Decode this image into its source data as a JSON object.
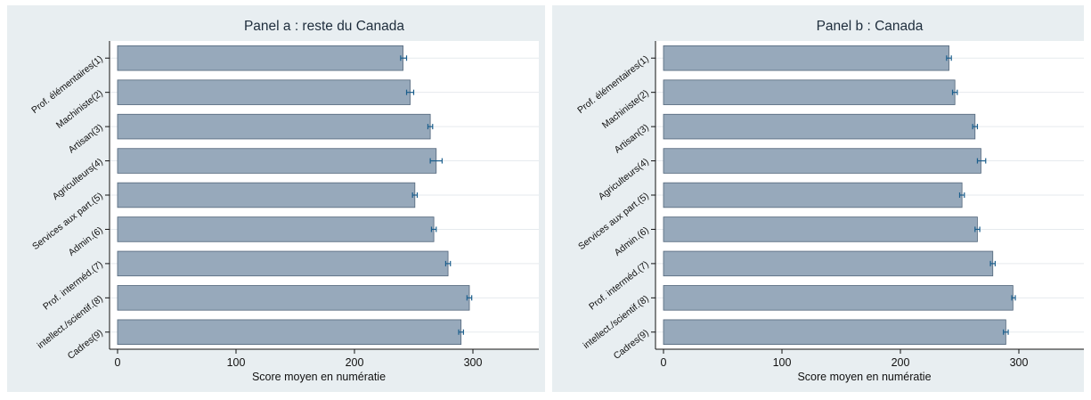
{
  "chart_data": [
    {
      "type": "bar",
      "orientation": "horizontal",
      "title": "Panel a : reste du Canada",
      "xlabel": "Score moyen en numératie",
      "ylabel": "",
      "xlim": [
        0,
        350
      ],
      "xticks": [
        0,
        100,
        200,
        300
      ],
      "grid": true,
      "error_bars": true,
      "categories": [
        "Prof. élémentaires(1)",
        "Machiniste(2)",
        "Artisan(3)",
        "Agriculteurs(4)",
        "Services aux part.(5)",
        "Admin.(6)",
        "Prof. interméd.(7)",
        "intellect./scientif.(8)",
        "Cadres(9)"
      ],
      "values": [
        241,
        247,
        264,
        269,
        251,
        267,
        279,
        297,
        290
      ],
      "error_low": [
        239,
        244,
        262,
        264,
        249,
        265,
        277,
        295,
        288
      ],
      "error_high": [
        244,
        250,
        266,
        274,
        253,
        269,
        281,
        299,
        292
      ]
    },
    {
      "type": "bar",
      "orientation": "horizontal",
      "title": "Panel b : Canada",
      "xlabel": "Score moyen en numératie",
      "ylabel": "",
      "xlim": [
        0,
        350
      ],
      "xticks": [
        0,
        100,
        200,
        300
      ],
      "grid": true,
      "error_bars": true,
      "categories": [
        "Prof. élémentaires(1)",
        "Machiniste(2)",
        "Artisan(3)",
        "Agriculteurs(4)",
        "Services aux part.(5)",
        "Admin.(6)",
        "Prof. interméd.(7)",
        "intellect./scientif.(8)",
        "Cadres(9)"
      ],
      "values": [
        241,
        246,
        263,
        268,
        252,
        265,
        278,
        295,
        289
      ],
      "error_low": [
        239,
        244,
        261,
        265,
        250,
        263,
        276,
        294,
        287
      ],
      "error_high": [
        243,
        248,
        265,
        272,
        254,
        267,
        280,
        297,
        291
      ]
    }
  ],
  "colors": {
    "panel_background": "#e8eef1",
    "plot_background": "#ffffff",
    "bar_fill": "#97a9bb",
    "bar_stroke": "#51657a",
    "error_bar": "#1b5e8c",
    "grid": "#e6eaee",
    "title_text": "#1e2d3c",
    "axis_text": "#111111"
  }
}
